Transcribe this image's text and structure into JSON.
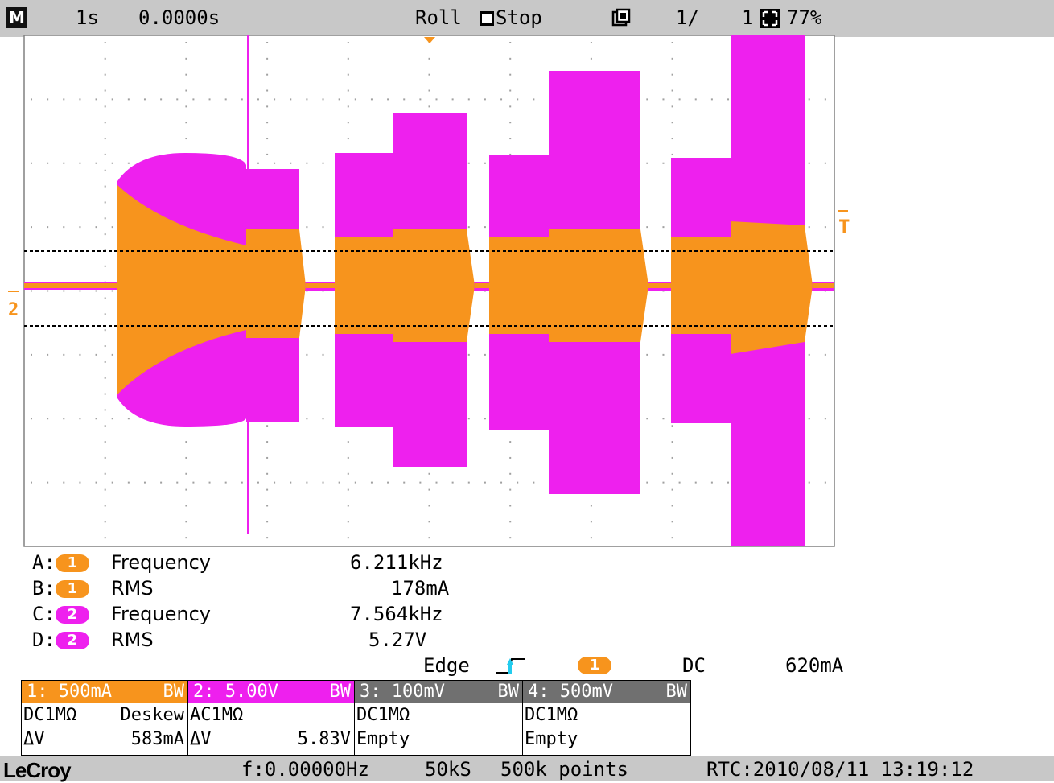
{
  "topbar": {
    "mode_icon": "M",
    "timebase": "1s",
    "delay": "0.0000s",
    "acq_mode": "Roll",
    "run_state": "Stop",
    "sequence": "1/",
    "sequence_total": "1",
    "zoom_pct": "77%"
  },
  "grid": {
    "trigger_level_marker": "T",
    "channel_marker": "2"
  },
  "measurements": [
    {
      "id": "A:",
      "channel": "1",
      "param": "Frequency",
      "value": "6.211kHz",
      "color": "#f7941d"
    },
    {
      "id": "B:",
      "channel": "1",
      "param": "RMS",
      "value": "178mA",
      "color": "#f7941d"
    },
    {
      "id": "C:",
      "channel": "2",
      "param": "Frequency",
      "value": "7.564kHz",
      "color": "#ee20ee"
    },
    {
      "id": "D:",
      "channel": "2",
      "param": "RMS",
      "value": "5.27V",
      "color": "#ee20ee"
    }
  ],
  "trigger": {
    "type": "Edge",
    "source": "1",
    "coupling": "DC",
    "level": "620mA"
  },
  "channels": [
    {
      "head": "1: 500mA",
      "bw": "BW",
      "color": "#f7941d",
      "l1a": "DC1MΩ",
      "l1b": "Deskew",
      "l2a": "ΔV",
      "l2b": "583mA"
    },
    {
      "head": "2: 5.00V",
      "bw": "BW",
      "color": "#ee20ee",
      "l1a": "AC1MΩ",
      "l1b": "",
      "l2a": "ΔV",
      "l2b": "5.83V"
    },
    {
      "head": "3: 100mV",
      "bw": "BW",
      "color": "#707070",
      "l1a": "DC1MΩ",
      "l1b": "",
      "l2a": "Empty",
      "l2b": ""
    },
    {
      "head": "4: 500mV",
      "bw": "BW",
      "color": "#707070",
      "l1a": "DC1MΩ",
      "l1b": "",
      "l2a": "Empty",
      "l2b": ""
    }
  ],
  "bottombar": {
    "logo": "LeCroy",
    "frequency": "f:0.00000Hz",
    "sample_rate": "50kS",
    "points": "500k points",
    "rtc": "RTC:2010/08/11 13:19:12"
  },
  "colors": {
    "ch1": "#f7941d",
    "ch2": "#ee20ee",
    "trigger_marker": "#f7941d"
  }
}
